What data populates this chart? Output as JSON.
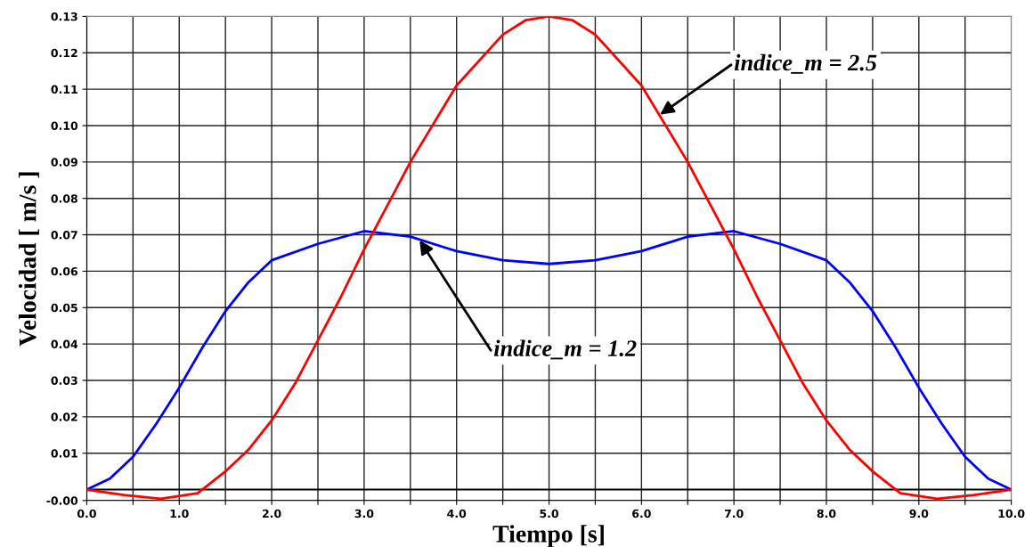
{
  "chart_data": {
    "type": "line",
    "xlabel": "Tiempo [s]",
    "ylabel": "Velocidad [ m/s ]",
    "series": [
      {
        "color": "#0000ff",
        "x": [
          0,
          0.25,
          0.5,
          0.75,
          1,
          1.25,
          1.5,
          1.75,
          2,
          2.5,
          3,
          3.5,
          4,
          4.5,
          5,
          5.5,
          6,
          6.5,
          7,
          7.5,
          8,
          8.25,
          8.5,
          8.75,
          9,
          9.25,
          9.5,
          9.75,
          10
        ],
        "values": [
          0,
          0.003,
          0.009,
          0.018,
          0.028,
          0.039,
          0.049,
          0.057,
          0.063,
          0.0675,
          0.071,
          0.0695,
          0.0655,
          0.063,
          0.062,
          0.063,
          0.0655,
          0.0695,
          0.071,
          0.0675,
          0.063,
          0.057,
          0.049,
          0.039,
          0.028,
          0.018,
          0.009,
          0.003,
          0
        ]
      },
      {
        "color": "#ff0000",
        "x": [
          0,
          0.4,
          0.8,
          1.2,
          1.5,
          1.75,
          2,
          2.25,
          2.5,
          2.75,
          3,
          3.5,
          4,
          4.5,
          4.75,
          5,
          5.25,
          5.5,
          6,
          6.5,
          7,
          7.25,
          7.5,
          7.75,
          8,
          8.25,
          8.5,
          8.8,
          9.2,
          9.6,
          10
        ],
        "values": [
          0,
          -0.0015,
          -0.0025,
          -0.001,
          0.005,
          0.011,
          0.019,
          0.029,
          0.041,
          0.053,
          0.066,
          0.09,
          0.111,
          0.125,
          0.129,
          0.13,
          0.129,
          0.125,
          0.111,
          0.09,
          0.066,
          0.053,
          0.041,
          0.029,
          0.019,
          0.011,
          0.005,
          -0.001,
          -0.0025,
          -0.0015,
          0
        ]
      }
    ],
    "annotations": [
      {
        "text": "indice_m = 2.5",
        "x": 6.2,
        "y": 0.103
      },
      {
        "text": "indice_m = 1.2",
        "x": 3.6,
        "y": 0.0685
      }
    ],
    "ref_lines": [
      {
        "axis": "y",
        "value": 0,
        "color": "#000000"
      }
    ],
    "xlim": [
      0,
      10
    ],
    "xticks": [
      {
        "value": 0,
        "label": "0.0"
      },
      {
        "value": 0.5,
        "label": null
      },
      {
        "value": 1,
        "label": "1.0"
      },
      {
        "value": 1.5,
        "label": null
      },
      {
        "value": 2,
        "label": "2.0"
      },
      {
        "value": 2.5,
        "label": null
      },
      {
        "value": 3,
        "label": "3.0"
      },
      {
        "value": 3.5,
        "label": null
      },
      {
        "value": 4,
        "label": "4.0"
      },
      {
        "value": 4.5,
        "label": null
      },
      {
        "value": 5,
        "label": "5.0"
      },
      {
        "value": 5.5,
        "label": null
      },
      {
        "value": 6,
        "label": "6.0"
      },
      {
        "value": 6.5,
        "label": null
      },
      {
        "value": 7,
        "label": "7.0"
      },
      {
        "value": 7.5,
        "label": null
      },
      {
        "value": 8,
        "label": "8.0"
      },
      {
        "value": 8.5,
        "label": null
      },
      {
        "value": 9,
        "label": "9.0"
      },
      {
        "value": 9.5,
        "label": null
      },
      {
        "value": 10,
        "label": "10.0"
      }
    ],
    "ylim": [
      -0.003,
      0.13
    ],
    "yticks": [
      {
        "value": -0.003,
        "label": "-0.00"
      },
      {
        "value": 0.01,
        "label": "0.01"
      },
      {
        "value": 0.02,
        "label": "0.02"
      },
      {
        "value": 0.03,
        "label": "0.03"
      },
      {
        "value": 0.04,
        "label": "0.04"
      },
      {
        "value": 0.05,
        "label": "0.05"
      },
      {
        "value": 0.06,
        "label": "0.06"
      },
      {
        "value": 0.07,
        "label": "0.07"
      },
      {
        "value": 0.08,
        "label": "0.08"
      },
      {
        "value": 0.09,
        "label": "0.09"
      },
      {
        "value": 0.1,
        "label": "0.10"
      },
      {
        "value": 0.11,
        "label": "0.11"
      },
      {
        "value": 0.12,
        "label": "0.12"
      },
      {
        "value": 0.13,
        "label": "0.13"
      }
    ],
    "grid": true,
    "marker": "none",
    "line_style": "solid"
  }
}
